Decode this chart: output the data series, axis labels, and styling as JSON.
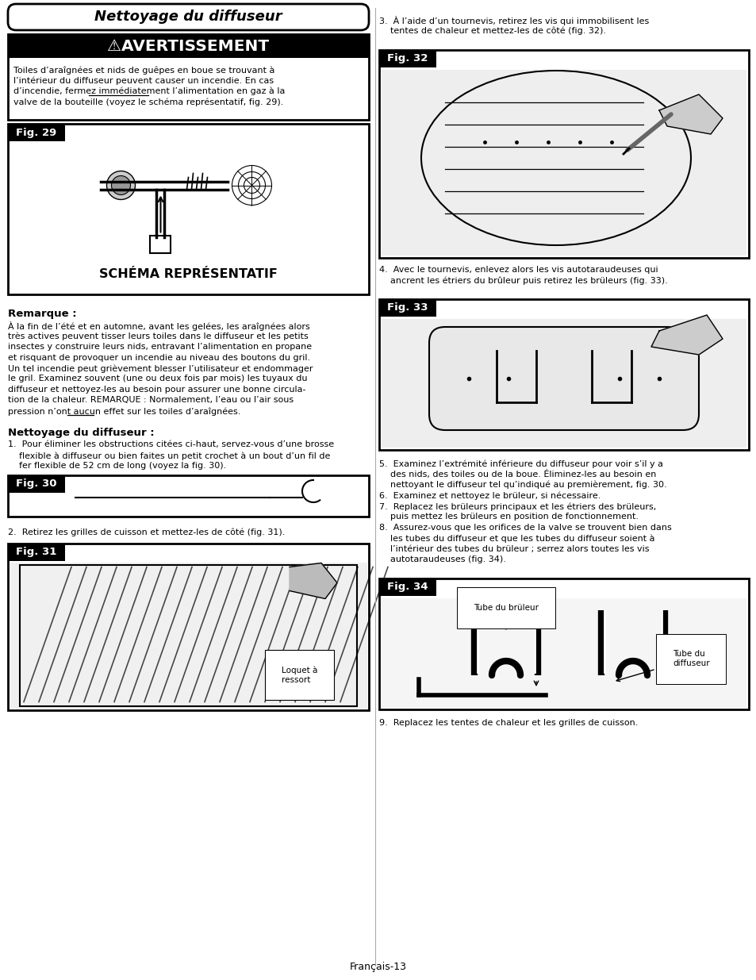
{
  "page_bg": "#ffffff",
  "title_text": "Nettoyage du diffuseur",
  "warning_header": "⚠AVERTISSEMENT",
  "warning_line1": "Toiles d’araîgnées et nids de guêpes en boue se trouvant à",
  "warning_line2": "l’intérieur du diffuseur peuvent causer un incendie. En cas",
  "warning_line3": "d’incendie, fermez immédiatement l’alimentation en gaz à la",
  "warning_line4": "valve de la bouteille (voyez le schéma représentatif, fig. 29).",
  "warning_underline_word": "immédiatement",
  "schema_caption": "SCHÉMA REPRÉSENTATIF",
  "remarque_title": "Remarque :",
  "remarque_lines": [
    "À la fin de l’été et en automne, avant les gelées, les araîgnées alors",
    "très actives peuvent tisser leurs toiles dans le diffuseur et les petits",
    "insectes y construire leurs nids, entravant l’alimentation en propane",
    "et risquant de provoquer un incendie au niveau des boutons du gril.",
    "Un tel incendie peut grièvement blesser l’utilisateur et endommager",
    "le gril. Examinez souvent (une ou deux fois par mois) les tuyaux du",
    "diffuseur et nettoyez-les au besoin pour assurer une bonne circula-",
    "tion de la chaleur. REMARQUE : Normalement, l’eau ou l’air sous",
    "pression n’ont aucun effet sur les toiles d’araîgnées."
  ],
  "remarque_underline": "aucun",
  "nettoyage_title": "Nettoyage du diffuseur :",
  "step1_lines": [
    "1.  Pour éliminer les obstructions citées ci-haut, servez-vous d’une brosse",
    "    flexible à diffuseur ou bien faites un petit crochet à un bout d’un fil de",
    "    fer flexible de 52 cm de long (voyez la fig. 30)."
  ],
  "step2": "2.  Retirez les grilles de cuisson et mettez-les de côté (fig. 31).",
  "step3_lines": [
    "3.  À l’aide d’un tournevis, retirez les vis qui immobilisent les",
    "    tentes de chaleur et mettez-les de côté (fig. 32)."
  ],
  "step4_lines": [
    "4.  Avec le tournevis, enlevez alors les vis autotaraudeuses qui",
    "    ancrent les étriers du brûleur puis retirez les brüleurs (fig. 33)."
  ],
  "step5_lines": [
    "5.  Examinez l’extrémité inférieure du diffuseur pour voir s’il y a",
    "    des nids, des toiles ou de la boue. Éliminez-les au besoin en",
    "    nettoyant le diffuseur tel qu’indiqué au premièrement, fig. 30."
  ],
  "step6": "6.  Examinez et nettoyez le brüleur, si nécessaire.",
  "step7_lines": [
    "7.  Replacez les brüleurs principaux et les étriers des brüleurs,",
    "    puis mettez les brüleurs en position de fonctionnement."
  ],
  "step8_lines": [
    "8.  Assurez-vous que les orifices de la valve se trouvent bien dans",
    "    les tubes du diffuseur et que les tubes du diffuseur soient à",
    "    l’intérieur des tubes du brüleur ; serrez alors toutes les vis",
    "    autotaraudeuses (fig. 34)."
  ],
  "step9": "9.  Replacez les tentes de chaleur et les grilles de cuisson.",
  "fig29_label": "Fig. 29",
  "fig30_label": "Fig. 30",
  "fig31_label": "Fig. 31",
  "fig32_label": "Fig. 32",
  "fig33_label": "Fig. 33",
  "fig34_label": "Fig. 34",
  "fig34_tube_bruleur": "Tube du brüleur",
  "fig34_tube_diffuseur": "Tube du\ndiffuseur",
  "loquet_label": "Loquet à\nressort",
  "footer": "Français-13"
}
